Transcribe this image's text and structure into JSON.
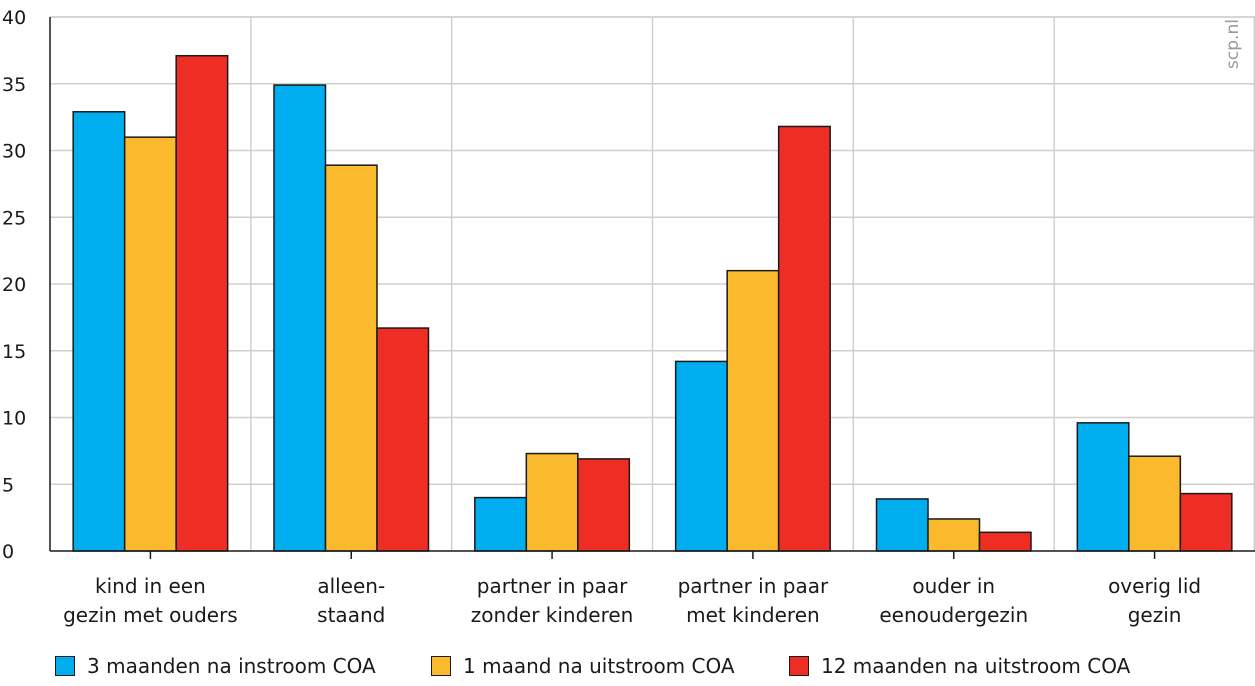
{
  "watermark": "scp.nl",
  "chart_data": {
    "type": "bar",
    "categories": [
      [
        "kind in een",
        "gezin met ouders"
      ],
      [
        "alleen-",
        "staand"
      ],
      [
        "partner in paar",
        "zonder kinderen"
      ],
      [
        "partner in paar",
        "met kinderen"
      ],
      [
        "ouder in",
        "eenoudergezin"
      ],
      [
        "overig lid",
        "gezin"
      ]
    ],
    "series": [
      {
        "name": "3 maanden na instroom COA",
        "color": "#00aeef",
        "values": [
          32.9,
          34.9,
          4.0,
          14.2,
          3.9,
          9.6
        ]
      },
      {
        "name": "1 maand na uitstroom COA",
        "color": "#fbb92d",
        "values": [
          31.0,
          28.9,
          7.3,
          21.0,
          2.4,
          7.1
        ]
      },
      {
        "name": "12 maanden na uitstroom COA",
        "color": "#ee2e24",
        "values": [
          37.1,
          16.7,
          6.9,
          31.8,
          1.4,
          4.3
        ]
      }
    ],
    "yticks": [
      "0",
      "5",
      "10",
      "15",
      "20",
      "25",
      "30",
      "35",
      "40"
    ],
    "ylim": [
      0,
      40
    ],
    "grid": true,
    "legend": "bottom"
  }
}
